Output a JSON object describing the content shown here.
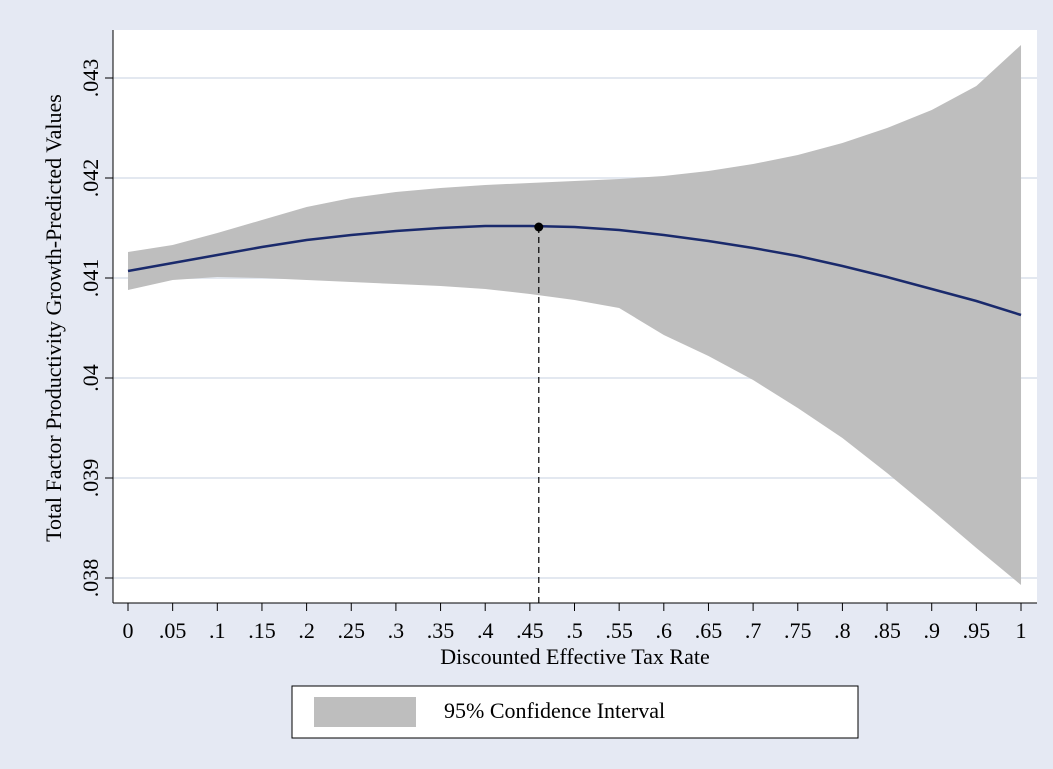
{
  "chart_data": {
    "type": "line",
    "x_label": "Discounted Effective Tax Rate",
    "y_label": "Total Factor Productivity Growth-Predicted Values",
    "x": [
      0,
      0.05,
      0.1,
      0.15,
      0.2,
      0.25,
      0.3,
      0.35,
      0.4,
      0.45,
      0.5,
      0.55,
      0.6,
      0.65,
      0.7,
      0.75,
      0.8,
      0.85,
      0.9,
      0.95,
      1
    ],
    "series": [
      {
        "name": "95% Confidence Interval",
        "type": "area",
        "color": "#bebebe",
        "upper": [
          0.04126,
          0.04133,
          0.04145,
          0.04158,
          0.04171,
          0.0418,
          0.04186,
          0.0419,
          0.04193,
          0.04195,
          0.04197,
          0.04199,
          0.04202,
          0.04207,
          0.04214,
          0.04223,
          0.04235,
          0.0425,
          0.04268,
          0.04292,
          0.04333
        ],
        "lower": [
          0.04088,
          0.04098,
          0.04101,
          0.041,
          0.04098,
          0.04096,
          0.04094,
          0.04092,
          0.04089,
          0.04084,
          0.04078,
          0.0407,
          0.04043,
          0.04022,
          0.03998,
          0.0397,
          0.0394,
          0.03905,
          0.03868,
          0.0383,
          0.03793
        ]
      },
      {
        "type": "line",
        "color": "#1a2a6c",
        "values": [
          0.04107,
          0.04115,
          0.04123,
          0.04131,
          0.04138,
          0.04143,
          0.04147,
          0.0415,
          0.04152,
          0.04152,
          0.04151,
          0.04148,
          0.04143,
          0.04137,
          0.0413,
          0.04122,
          0.04112,
          0.04101,
          0.04089,
          0.04077,
          0.04063
        ]
      }
    ],
    "marker": {
      "x": 0.46,
      "y": 0.04151,
      "color": "#000000"
    },
    "xlim": [
      -0.0168,
      1.0179
    ],
    "ylim": [
      0.03775,
      0.04348
    ],
    "xticks": [
      0,
      {
        "value": 0.05,
        "label": ".05"
      },
      {
        "value": 0.1,
        "label": ".1"
      },
      {
        "value": 0.15,
        "label": ".15"
      },
      {
        "value": 0.2,
        "label": ".2"
      },
      {
        "value": 0.25,
        "label": ".25"
      },
      {
        "value": 0.3,
        "label": ".3"
      },
      {
        "value": 0.35,
        "label": ".35"
      },
      {
        "value": 0.4,
        "label": ".4"
      },
      {
        "value": 0.45,
        "label": ".45"
      },
      {
        "value": 0.5,
        "label": ".5"
      },
      {
        "value": 0.55,
        "label": ".55"
      },
      {
        "value": 0.6,
        "label": ".6"
      },
      {
        "value": 0.65,
        "label": ".65"
      },
      {
        "value": 0.7,
        "label": ".7"
      },
      {
        "value": 0.75,
        "label": ".75"
      },
      {
        "value": 0.8,
        "label": ".8"
      },
      {
        "value": 0.85,
        "label": ".85"
      },
      {
        "value": 0.9,
        "label": ".9"
      },
      {
        "value": 0.95,
        "label": ".95"
      },
      1
    ],
    "yticks": [
      {
        "value": 0.038,
        "label": ".038"
      },
      {
        "value": 0.039,
        "label": ".039"
      },
      {
        "value": 0.04,
        "label": ".04"
      },
      {
        "value": 0.041,
        "label": ".041"
      },
      {
        "value": 0.042,
        "label": ".042"
      },
      {
        "value": 0.043,
        "label": ".043"
      }
    ],
    "grid": true
  }
}
